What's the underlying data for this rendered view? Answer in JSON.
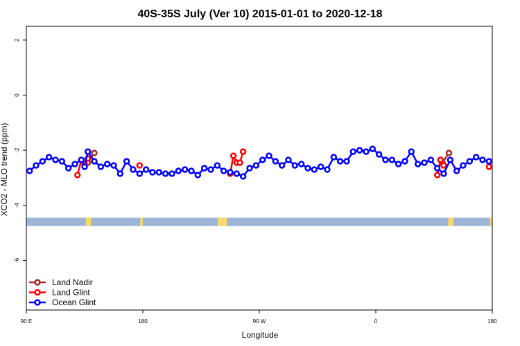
{
  "chart_data": {
    "type": "line",
    "title": "40S-35S July (Ver 10)   2015-01-01 to 2020-12-18",
    "xlabel": "Longitude",
    "ylabel": "XCO2 - MLO trend (ppm)",
    "xlim": [
      90,
      450
    ],
    "ylim": [
      -7.8,
      2.5
    ],
    "x_ticks": [
      {
        "value": 90,
        "label": "90 E"
      },
      {
        "value": 180,
        "label": "180"
      },
      {
        "value": 270,
        "label": "90 W"
      },
      {
        "value": 360,
        "label": "0"
      },
      {
        "value": 450,
        "label": "180"
      }
    ],
    "y_ticks": [
      {
        "value": 2,
        "label": "2"
      },
      {
        "value": 0,
        "label": "0"
      },
      {
        "value": -2,
        "label": "-2"
      },
      {
        "value": -4,
        "label": "-4"
      },
      {
        "value": -6,
        "label": "-6"
      }
    ],
    "grid": false,
    "legend_position": "bottom-left",
    "land_band": {
      "y_top": -4.45,
      "y_bottom": -4.75,
      "color": "#9db4d8",
      "land_color": "#ffd966",
      "land_x": [
        [
          136,
          140
        ],
        [
          178,
          180
        ],
        [
          238,
          245
        ],
        [
          416,
          420
        ],
        [
          448,
          450
        ]
      ]
    },
    "series": [
      {
        "name": "Land Nadir",
        "color": "#a52a2a",
        "x": [
          137.5,
          142.5,
          411.5,
          416.5
        ],
        "y": [
          -2.45,
          -2.1,
          -2.45,
          -2.1
        ]
      },
      {
        "name": "Land Glint",
        "color": "#ff0000",
        "x": [
          129.5,
          132.5,
          135,
          137.5,
          177.5,
          247.5,
          250,
          252.5,
          255,
          257.5,
          407.5,
          410,
          412.5,
          447.5
        ],
        "y": [
          -2.9,
          -2.35,
          -2.5,
          -2.3,
          -2.55,
          -2.85,
          -2.2,
          -2.45,
          -2.45,
          -2.05,
          -2.9,
          -2.35,
          -2.55,
          -2.6
        ]
      },
      {
        "name": "Ocean Glint",
        "color": "#0000ff",
        "x": [
          92.5,
          97.5,
          102.5,
          107.5,
          112.5,
          117.5,
          122.5,
          127.5,
          132.5,
          135,
          137.5,
          142.5,
          147.5,
          152.5,
          157.5,
          162.5,
          167.5,
          172.5,
          177.5,
          182.5,
          187.5,
          192.5,
          197.5,
          202.5,
          207.5,
          212.5,
          217.5,
          222.5,
          227.5,
          232.5,
          237.5,
          242.5,
          247.5,
          252.5,
          257.5,
          262.5,
          267.5,
          272.5,
          277.5,
          282.5,
          287.5,
          292.5,
          297.5,
          302.5,
          307.5,
          312.5,
          317.5,
          322.5,
          327.5,
          332.5,
          337.5,
          342.5,
          347.5,
          352.5,
          357.5,
          362.5,
          367.5,
          372.5,
          377.5,
          382.5,
          387.5,
          392.5,
          397.5,
          402.5,
          407.5,
          412.5,
          417.5,
          422.5,
          427.5,
          432.5,
          437.5,
          442.5,
          447.5
        ],
        "y": [
          -2.75,
          -2.55,
          -2.4,
          -2.25,
          -2.35,
          -2.4,
          -2.65,
          -2.5,
          -2.35,
          -2.6,
          -2.05,
          -2.4,
          -2.6,
          -2.5,
          -2.55,
          -2.85,
          -2.4,
          -2.7,
          -2.85,
          -2.7,
          -2.8,
          -2.8,
          -2.85,
          -2.85,
          -2.75,
          -2.7,
          -2.75,
          -2.9,
          -2.65,
          -2.7,
          -2.55,
          -2.75,
          -2.8,
          -2.85,
          -2.95,
          -2.65,
          -2.55,
          -2.35,
          -2.2,
          -2.4,
          -2.55,
          -2.35,
          -2.55,
          -2.5,
          -2.65,
          -2.7,
          -2.6,
          -2.7,
          -2.25,
          -2.4,
          -2.4,
          -2.05,
          -2.0,
          -2.05,
          -1.95,
          -2.15,
          -2.35,
          -2.35,
          -2.5,
          -2.4,
          -2.05,
          -2.5,
          -2.45,
          -2.35,
          -2.65,
          -2.85,
          -2.35,
          -2.75,
          -2.55,
          -2.4,
          -2.25,
          -2.35,
          -2.4
        ]
      }
    ]
  }
}
